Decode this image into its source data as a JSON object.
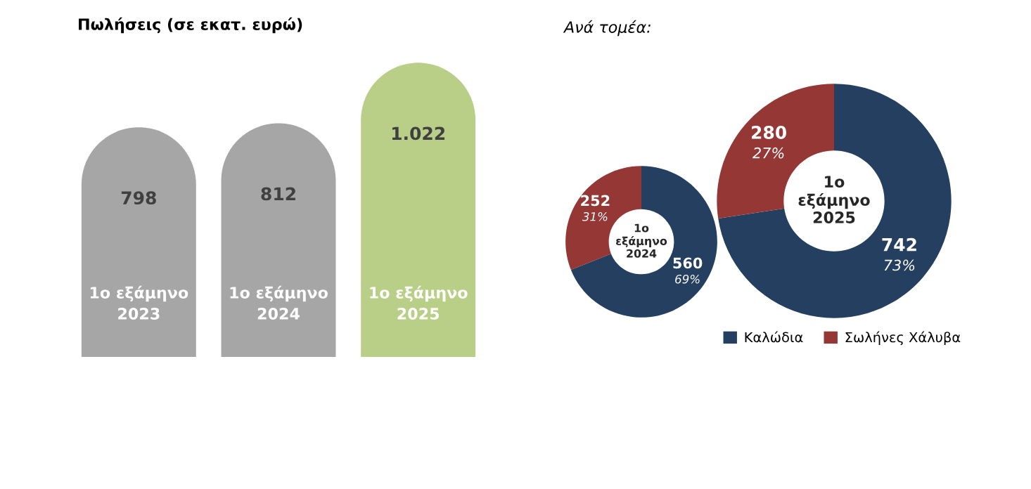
{
  "chart_data": [
    {
      "type": "bar",
      "title": "Πωλήσεις (σε εκατ. ευρώ)",
      "categories": [
        "1ο εξάμηνο\n2023",
        "1ο εξάμηνο\n2024",
        "1ο εξάμηνο\n2025"
      ],
      "values": [
        798,
        812,
        1022
      ],
      "value_labels": [
        "798",
        "812",
        "1.022"
      ],
      "colors": [
        "#a6a6a6",
        "#a6a6a6",
        "#b9cf87"
      ]
    },
    {
      "type": "donut",
      "title": "Ανά τομέα:",
      "categories": [
        "Καλώδια",
        "Σωλήνες Χάλυβα"
      ],
      "values": [
        560,
        252
      ],
      "value_labels": [
        "560\n69%",
        "252\n31%"
      ],
      "colors": [
        "#243f60",
        "#953735"
      ],
      "annotations": [
        "1ο\nεξάμηνο\n2024"
      ],
      "legend": "bottom right"
    },
    {
      "type": "donut",
      "values": [
        742,
        280
      ],
      "value_labels": [
        "742\n73%",
        "280\n27%"
      ],
      "colors": [
        "#243f60",
        "#953735"
      ],
      "annotations": [
        "1ο\nεξάμηνο\n2025"
      ]
    }
  ]
}
